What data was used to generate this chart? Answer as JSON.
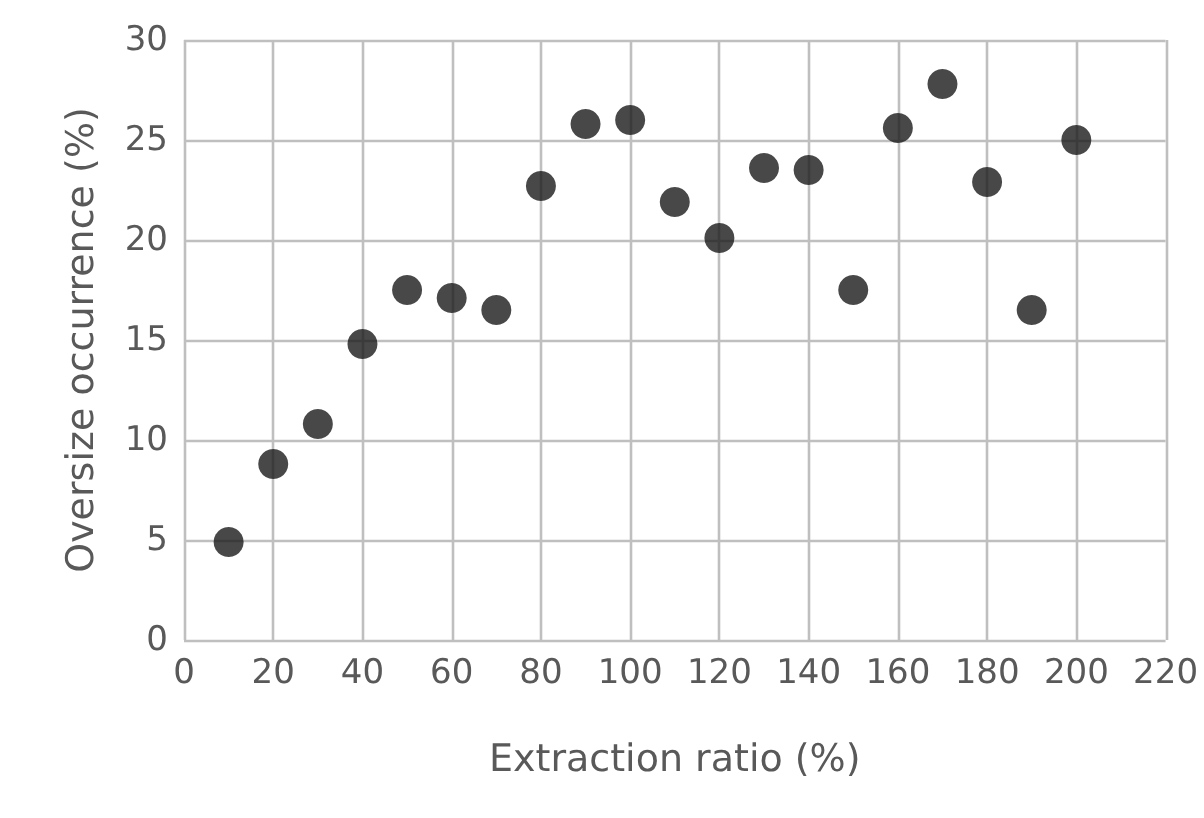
{
  "chart_data": {
    "type": "scatter",
    "xlabel": "Extraction ratio (%)",
    "ylabel": "Oversize occurrence (%)",
    "x": [
      10,
      20,
      30,
      40,
      50,
      60,
      70,
      80,
      90,
      100,
      110,
      120,
      130,
      140,
      150,
      160,
      170,
      180,
      190,
      200
    ],
    "series": [
      {
        "color": "#1a1a1a",
        "values": [
          4.9,
          8.8,
          10.8,
          14.8,
          17.5,
          17.1,
          16.5,
          22.7,
          25.8,
          26.0,
          21.9,
          20.1,
          23.6,
          23.5,
          17.5,
          25.6,
          27.8,
          22.9,
          16.5,
          25.0
        ]
      }
    ],
    "xlim": [
      0,
      220
    ],
    "xticks": [
      0,
      20,
      40,
      60,
      80,
      100,
      120,
      140,
      160,
      180,
      200,
      220
    ],
    "ylim": [
      0,
      30
    ],
    "yticks": [
      0,
      5,
      10,
      15,
      20,
      25,
      30
    ],
    "grid": true,
    "marker": "circle"
  }
}
